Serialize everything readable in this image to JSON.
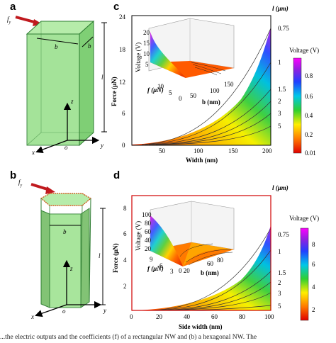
{
  "panels": {
    "a": {
      "letter": "a",
      "force_label": "f",
      "force_sub": "y",
      "b1": "b",
      "b2": "b",
      "l": "l",
      "x": "x",
      "y": "y",
      "z": "z",
      "o": "o"
    },
    "b": {
      "letter": "b",
      "force_label": "f",
      "force_sub": "y",
      "b1": "b",
      "l": "l",
      "x": "x",
      "y": "y",
      "z": "z",
      "o": "o"
    },
    "c": {
      "letter": "c",
      "ylabel": "Force (μN)",
      "xlabel": "Width (nm)",
      "yticks": [
        "0",
        "6",
        "12",
        "18",
        "24"
      ],
      "xticks": [
        "50",
        "100",
        "150",
        "200"
      ],
      "l_header": "l (μm)",
      "l_values": [
        "0.75",
        "1",
        "1.5",
        "2",
        "3",
        "5"
      ],
      "colorbar_title": "Voltage (V)",
      "colorbar_ticks": [
        "0.8",
        "0.6",
        "0.4",
        "0.2",
        "0.01"
      ],
      "inset": {
        "zlabel": "Voltage (V)",
        "flabel": "f (μN)",
        "blabel": "b (nm)",
        "zticks": [
          "20",
          "15",
          "10",
          "5"
        ],
        "fticks": [
          "0",
          "5",
          "10"
        ],
        "bticks": [
          "0",
          "50",
          "100",
          "150"
        ]
      }
    },
    "d": {
      "letter": "d",
      "ylabel": "Force (μN)",
      "xlabel": "Side width (nm)",
      "yticks": [
        "2",
        "4",
        "6",
        "8"
      ],
      "xticks": [
        "0",
        "20",
        "40",
        "60",
        "80",
        "100"
      ],
      "l_header": "l (μm)",
      "l_values": [
        "0.75",
        "1",
        "1.5",
        "2",
        "3",
        "5"
      ],
      "colorbar_title": "Voltage (V)",
      "colorbar_ticks": [
        "8",
        "6",
        "4",
        "2"
      ],
      "inset": {
        "zlabel": "Voltage (V)",
        "flabel": "f (μN)",
        "blabel": "b (nm)",
        "zticks": [
          "100",
          "80",
          "60",
          "40",
          "20"
        ],
        "fticks": [
          "9",
          "6",
          "3"
        ],
        "bticks": [
          "0 20",
          "60",
          "80"
        ]
      }
    }
  },
  "colors": {
    "prism_fill": "#9be08f",
    "prism_edge": "#2e7d32",
    "arrow_red": "#c0191e",
    "frame_red": "#d00000"
  },
  "caption": "...the electric outputs and the coefficients (f) of a rectangular NW and (b) a hexagonal NW. The"
}
